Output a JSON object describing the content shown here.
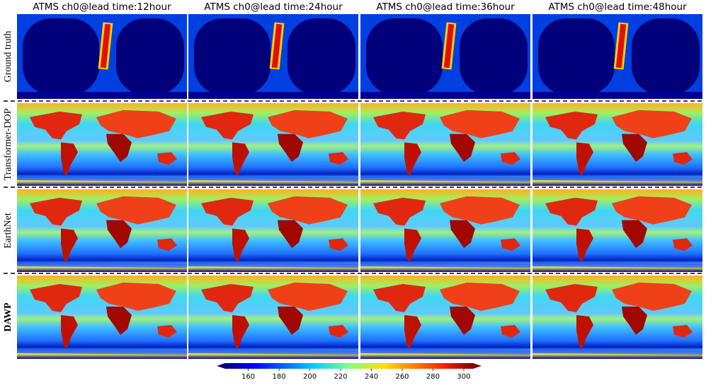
{
  "columns": [
    "ATMS ch0@lead time:12hour",
    "ATMS ch0@lead time:24hour",
    "ATMS ch0@lead time:36hour",
    "ATMS ch0@lead time:48hour"
  ],
  "rows": [
    "Ground truth",
    "Transformer-DOP",
    "EarthNet",
    "DAWP"
  ],
  "colorbar": {
    "range": [
      145,
      306
    ],
    "ticks": [
      160,
      180,
      200,
      220,
      240,
      260,
      280,
      300
    ]
  }
}
